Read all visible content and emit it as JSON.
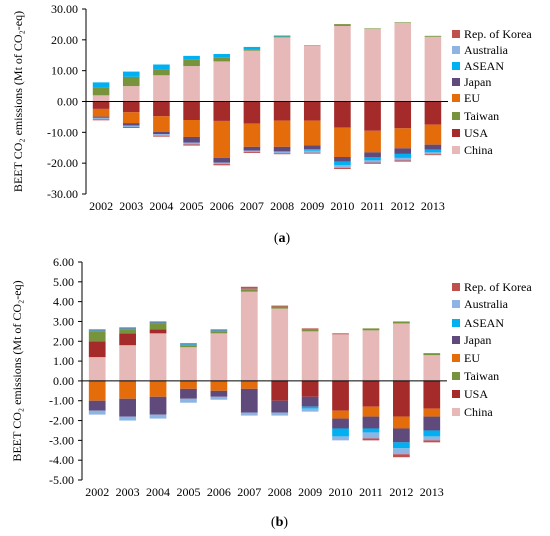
{
  "chart_data": [
    {
      "type": "bar",
      "stacked": true,
      "caption_open": "(",
      "caption_letter": "a",
      "caption_close": ")",
      "ylabel": "BEET CO₂ emissions (Mt of CO₂-eq)",
      "xlabel": "",
      "ylim": [
        -30,
        30
      ],
      "yticks": [
        "30.00",
        "20.00",
        "10.00",
        "0.00",
        "-10.00",
        "-20.00",
        "-30.00"
      ],
      "ytick_values": [
        30,
        20,
        10,
        0,
        -10,
        -20,
        -30
      ],
      "categories": [
        "2002",
        "2003",
        "2004",
        "2005",
        "2006",
        "2007",
        "2008",
        "2009",
        "2010",
        "2011",
        "2012",
        "2013"
      ],
      "grid": false,
      "legend_position": "right",
      "series": [
        {
          "name": "Rep. of Korea",
          "color": "#C0504D",
          "values": [
            -0.3,
            -0.3,
            -0.3,
            -0.4,
            -0.4,
            -0.3,
            -0.3,
            -0.3,
            -0.4,
            -0.4,
            -0.4,
            -0.3
          ]
        },
        {
          "name": "Australia",
          "color": "#8EB4E3",
          "values": [
            -0.5,
            -0.5,
            -0.5,
            -0.6,
            -0.5,
            -0.5,
            -0.6,
            -0.6,
            -0.8,
            -0.7,
            -0.8,
            -0.6
          ]
        },
        {
          "name": "ASEAN",
          "color": "#00B0F0",
          "values": [
            1.7,
            1.7,
            1.5,
            1.3,
            1.2,
            0.8,
            0.3,
            -0.5,
            -1.2,
            -1.1,
            -1.3,
            -0.9
          ]
        },
        {
          "name": "Japan",
          "color": "#604A7B",
          "values": [
            -0.4,
            -0.8,
            -0.8,
            -1.8,
            -1.5,
            -1.2,
            -1.5,
            -1.3,
            -1.5,
            -1.5,
            -1.8,
            -1.6
          ]
        },
        {
          "name": "EU",
          "color": "#E46C0A",
          "values": [
            -2.5,
            -3.5,
            -5.0,
            -5.5,
            -12.0,
            -7.5,
            -8.5,
            -8.0,
            -9.5,
            -7.0,
            -6.5,
            -6.5
          ]
        },
        {
          "name": "Taiwan",
          "color": "#77933C",
          "values": [
            2.5,
            3.0,
            2.0,
            2.0,
            1.2,
            0.4,
            0.3,
            0.2,
            0.6,
            0.2,
            0.2,
            0.3
          ]
        },
        {
          "name": "USA",
          "color": "#A52A2A",
          "values": [
            -2.4,
            -3.5,
            -4.8,
            -6.0,
            -6.3,
            -7.2,
            -6.2,
            -6.2,
            -8.5,
            -9.5,
            -8.7,
            -7.5
          ]
        },
        {
          "name": "China",
          "color": "#E6B9B8",
          "values": [
            2.0,
            5.0,
            8.5,
            11.5,
            13.0,
            16.5,
            20.8,
            18.0,
            24.5,
            23.5,
            25.5,
            21.0
          ]
        }
      ]
    },
    {
      "type": "bar",
      "stacked": true,
      "caption_open": "(",
      "caption_letter": "b",
      "caption_close": ")",
      "ylabel": "BEET CO₂ emissions (Mt of CO₂-eq)",
      "xlabel": "",
      "ylim": [
        -5,
        6
      ],
      "yticks": [
        "6.00",
        "5.00",
        "4.00",
        "3.00",
        "2.00",
        "1.00",
        "0.00",
        "-1.00",
        "-2.00",
        "-3.00",
        "-4.00",
        "-5.00"
      ],
      "ytick_values": [
        6,
        5,
        4,
        3,
        2,
        1,
        0,
        -1,
        -2,
        -3,
        -4,
        -5
      ],
      "categories": [
        "2002",
        "2003",
        "2004",
        "2005",
        "2006",
        "2007",
        "2008",
        "2009",
        "2010",
        "2011",
        "2012",
        "2013"
      ],
      "grid": false,
      "legend_position": "right",
      "series": [
        {
          "name": "Rep. of Korea",
          "color": "#C0504D",
          "values": [
            0.05,
            0.05,
            0.05,
            0.05,
            0.05,
            0.1,
            0.05,
            0.05,
            0.05,
            -0.1,
            -0.15,
            -0.1
          ]
        },
        {
          "name": "Australia",
          "color": "#8EB4E3",
          "values": [
            -0.2,
            -0.2,
            -0.2,
            -0.2,
            -0.15,
            -0.15,
            -0.15,
            -0.15,
            -0.2,
            -0.3,
            -0.3,
            -0.2
          ]
        },
        {
          "name": "ASEAN",
          "color": "#00B0F0",
          "values": [
            0.05,
            0.05,
            0.05,
            0.05,
            0.05,
            0.05,
            0.0,
            -0.1,
            -0.4,
            -0.2,
            -0.3,
            -0.3
          ]
        },
        {
          "name": "Japan",
          "color": "#604A7B",
          "values": [
            -0.5,
            -0.9,
            -0.9,
            -0.5,
            -0.3,
            -1.2,
            -0.6,
            -0.5,
            -0.5,
            -0.6,
            -0.7,
            -0.7
          ]
        },
        {
          "name": "EU",
          "color": "#E46C0A",
          "values": [
            -1.0,
            -0.9,
            -0.8,
            -0.4,
            -0.5,
            -0.4,
            0.0,
            0.0,
            -0.4,
            -0.5,
            -0.6,
            -0.4
          ]
        },
        {
          "name": "Taiwan",
          "color": "#77933C",
          "values": [
            0.5,
            0.2,
            0.3,
            0.1,
            0.1,
            0.1,
            0.1,
            0.1,
            0.0,
            0.1,
            0.1,
            0.1
          ]
        },
        {
          "name": "USA",
          "color": "#A52A2A",
          "values": [
            0.8,
            0.6,
            0.2,
            0.0,
            0.0,
            0.0,
            -1.0,
            -0.8,
            -1.5,
            -1.3,
            -1.8,
            -1.4
          ]
        },
        {
          "name": "China",
          "color": "#E6B9B8",
          "values": [
            1.2,
            1.8,
            2.4,
            1.7,
            2.4,
            4.5,
            3.65,
            2.5,
            2.35,
            2.55,
            2.9,
            1.3
          ]
        }
      ]
    }
  ]
}
